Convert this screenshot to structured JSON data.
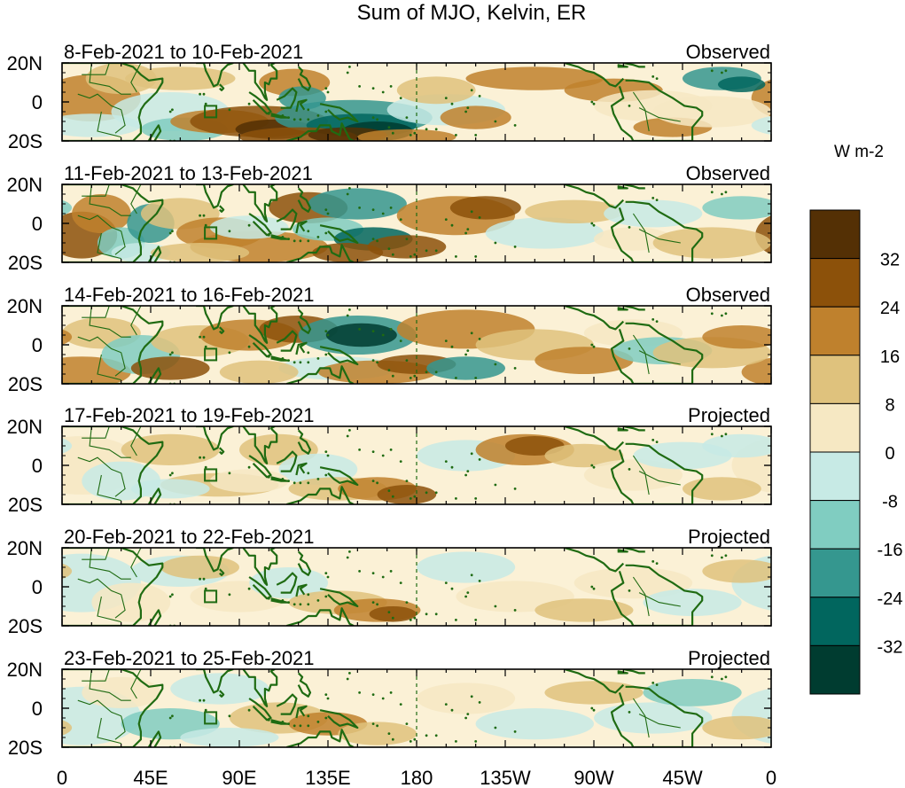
{
  "title": "Sum of MJO, Kelvin, ER",
  "units": "W m-2",
  "lat_ticks": [
    "20N",
    "0",
    "20S"
  ],
  "lon_ticks": [
    "0",
    "45E",
    "90E",
    "135E",
    "180",
    "135W",
    "90W",
    "45W",
    "0"
  ],
  "colorbar": {
    "labels": [
      "32",
      "24",
      "16",
      "8",
      "0",
      "-8",
      "-16",
      "-24",
      "-32"
    ],
    "colors": [
      "#543005",
      "#8c510a",
      "#bf812d",
      "#dfc27d",
      "#f6e8c3",
      "#c7eae5",
      "#80cdc1",
      "#35978f",
      "#01665e",
      "#003c30"
    ]
  },
  "map_colors": {
    "coast": "#1f6b12",
    "dateline": "#1f6b12"
  },
  "panels": [
    {
      "dates": "8-Feb-2021 to 10-Feb-2021",
      "status": "Observed"
    },
    {
      "dates": "11-Feb-2021 to 13-Feb-2021",
      "status": "Observed"
    },
    {
      "dates": "14-Feb-2021 to 16-Feb-2021",
      "status": "Observed"
    },
    {
      "dates": "17-Feb-2021 to 19-Feb-2021",
      "status": "Projected"
    },
    {
      "dates": "20-Feb-2021 to 22-Feb-2021",
      "status": "Projected"
    },
    {
      "dates": "23-Feb-2021 to 25-Feb-2021",
      "status": "Projected"
    }
  ]
}
